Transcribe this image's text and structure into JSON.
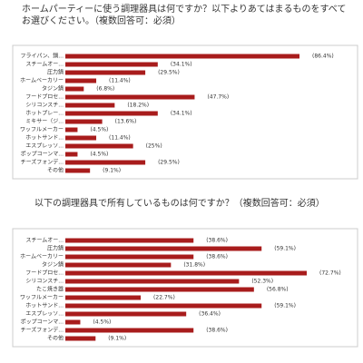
{
  "chart_data": [
    {
      "type": "bar",
      "horizontal": true,
      "color": "#a81c1c",
      "title": "ホームパーティーに使う調理器具は何ですか？以下よりあてはまるものをすべてお選びください。（複数回答可：必須）",
      "categories": [
        "フライパン、鍋...",
        "スチームオー...",
        "圧力鍋",
        "ホームベーカリー",
        "タジン鍋",
        "フードプロセ...",
        "シリコンスチ...",
        "ホットプレー...",
        "ミキサー（ジ...",
        "ワッフルメーカー",
        "ホットサンド...",
        "エスプレッソ...",
        "ポップコーンマ...",
        "チーズフォンデ...",
        "その他"
      ],
      "values": [
        86.4,
        34.1,
        29.5,
        11.4,
        6.8,
        47.7,
        18.2,
        34.1,
        13.6,
        4.5,
        11.4,
        25,
        4.5,
        29.5,
        9.1
      ],
      "value_labels": [
        "(86.4%)",
        "(34.1%)",
        "(29.5%)",
        "(11.4%)",
        "(6.8%)",
        "(47.7%)",
        "(18.2%)",
        "(34.1%)",
        "(13.6%)",
        "(4.5%)",
        "(11.4%)",
        "(25%)",
        "(4.5%)",
        "(29.5%)",
        "(9.1%)"
      ]
    },
    {
      "type": "bar",
      "horizontal": true,
      "color": "#a81c1c",
      "title": "以下の調理器具で所有しているものは何ですか？（複数回答可：必須）",
      "categories": [
        "スチームオー...",
        "圧力鍋",
        "ホームベーカリー",
        "タジン鍋",
        "フードプロセ...",
        "シリコンスチ...",
        "たこ焼き器",
        "ワッフルメーカー",
        "ホットサンド...",
        "エスプレッソ...",
        "ポップコーンマ...",
        "チーズフォンデ...",
        "その他"
      ],
      "values": [
        38.6,
        59.1,
        38.6,
        31.8,
        72.7,
        52.3,
        56.8,
        22.7,
        59.1,
        36.4,
        4.5,
        38.6,
        9.1
      ],
      "value_labels": [
        "(38.6%)",
        "(59.1%)",
        "(38.6%)",
        "(31.8%)",
        "(72.7%)",
        "(52.3%)",
        "(56.8%)",
        "(22.7%)",
        "(59.1%)",
        "(36.4%)",
        "(4.5%)",
        "(38.6%)",
        "(9.1%)"
      ]
    }
  ]
}
